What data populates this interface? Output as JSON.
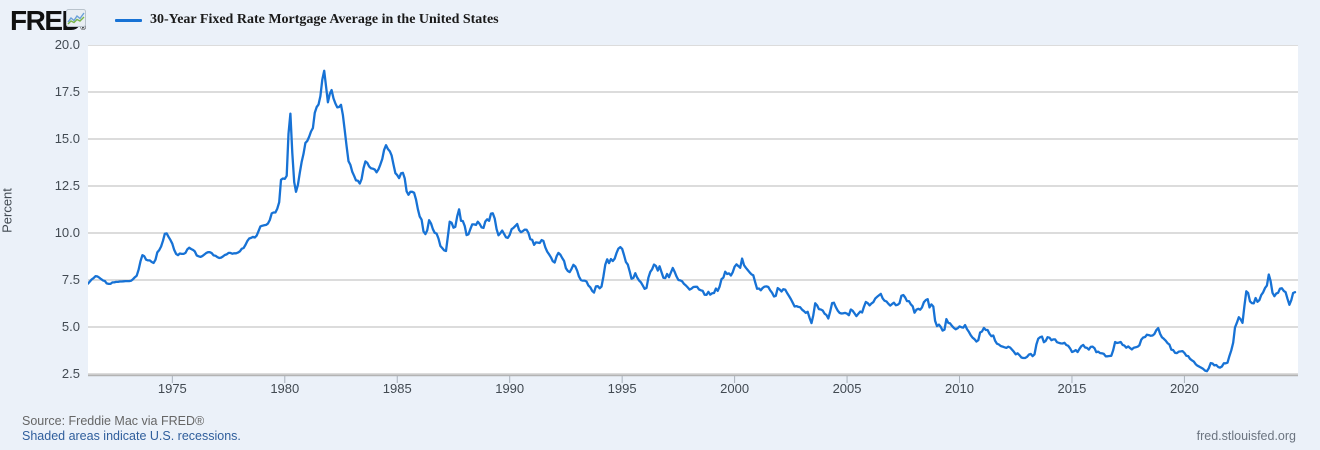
{
  "header": {
    "logo_text": "FRED",
    "logo_registered": "®"
  },
  "footer": {
    "source": "Source: Freddie Mac via FRED®",
    "recession_note": "Shaded areas indicate U.S. recessions.",
    "site": "fred.stlouisfed.org"
  },
  "colors": {
    "background": "#ebf1f9",
    "plot_background": "#ffffff",
    "gridline": "#c6c6c6",
    "axis_line": "#b3b3b3",
    "tick_mark": "#a9b2bc",
    "line": "#1772d5",
    "link_blue": "#2f5e9c",
    "text_gray": "#666666"
  },
  "chart_data": {
    "type": "line",
    "title": "30-Year Fixed Rate Mortgage Average in the United States",
    "grid": true,
    "legend_position": "top-left",
    "x_axis": {
      "min": 1971.25,
      "max": 2025.05,
      "tick_labels": [
        "1975",
        "1980",
        "1985",
        "1990",
        "1995",
        "2000",
        "2005",
        "2010",
        "2015",
        "2020"
      ]
    },
    "y_axis": {
      "title": "Percent",
      "grid_min": 2.5,
      "grid_max": 20.0,
      "tick_labels": [
        "2.5",
        "5.0",
        "7.5",
        "10.0",
        "12.5",
        "15.0",
        "17.5",
        "20.0"
      ]
    },
    "series": [
      {
        "unit": "percent",
        "frequency_depicted": "monthly",
        "x_start": 1971.25,
        "x_step": 0.0833333,
        "values": [
          7.31,
          7.42,
          7.53,
          7.6,
          7.7,
          7.69,
          7.63,
          7.55,
          7.48,
          7.44,
          7.32,
          7.29,
          7.29,
          7.37,
          7.37,
          7.4,
          7.4,
          7.42,
          7.42,
          7.43,
          7.44,
          7.44,
          7.44,
          7.46,
          7.54,
          7.65,
          7.73,
          8.05,
          8.5,
          8.82,
          8.77,
          8.58,
          8.54,
          8.54,
          8.46,
          8.41,
          8.58,
          8.97,
          9.09,
          9.28,
          9.59,
          9.96,
          9.98,
          9.79,
          9.62,
          9.43,
          9.1,
          8.89,
          8.82,
          8.91,
          8.89,
          8.89,
          8.94,
          9.13,
          9.22,
          9.15,
          9.1,
          9.02,
          8.81,
          8.76,
          8.73,
          8.77,
          8.85,
          8.93,
          8.98,
          8.98,
          8.93,
          8.81,
          8.79,
          8.72,
          8.67,
          8.69,
          8.75,
          8.83,
          8.86,
          8.94,
          8.94,
          8.9,
          8.92,
          8.92,
          8.96,
          9.02,
          9.16,
          9.2,
          9.36,
          9.57,
          9.71,
          9.74,
          9.79,
          9.76,
          9.86,
          10.11,
          10.35,
          10.39,
          10.41,
          10.43,
          10.5,
          10.69,
          11.04,
          11.09,
          11.09,
          11.3,
          11.64,
          12.83,
          12.9,
          12.88,
          13.04,
          15.28,
          16.35,
          14.26,
          12.71,
          12.19,
          12.56,
          13.2,
          13.79,
          14.21,
          14.79,
          14.9,
          15.13,
          15.4,
          15.58,
          16.4,
          16.7,
          16.83,
          17.28,
          18.16,
          18.63,
          17.82,
          16.95,
          17.4,
          17.6,
          17.16,
          16.89,
          16.68,
          16.7,
          16.82,
          16.27,
          15.43,
          14.61,
          13.82,
          13.62,
          13.25,
          13.04,
          12.8,
          12.78,
          12.63,
          12.87,
          13.44,
          13.81,
          13.73,
          13.54,
          13.44,
          13.42,
          13.37,
          13.23,
          13.39,
          13.65,
          13.94,
          14.42,
          14.67,
          14.47,
          14.35,
          14.13,
          13.64,
          13.18,
          13.08,
          12.92,
          13.17,
          13.2,
          12.91,
          12.22,
          12.03,
          12.19,
          12.19,
          12.14,
          11.78,
          11.26,
          10.88,
          10.71,
          10.08,
          9.94,
          10.14,
          10.68,
          10.51,
          10.2,
          10.01,
          9.97,
          9.7,
          9.31,
          9.2,
          9.08,
          9.04,
          9.83,
          10.6,
          10.54,
          10.28,
          10.33,
          10.89,
          11.26,
          10.65,
          10.64,
          10.38,
          9.89,
          9.93,
          10.2,
          10.46,
          10.46,
          10.43,
          10.6,
          10.48,
          10.3,
          10.27,
          10.61,
          10.73,
          10.65,
          11.03,
          11.05,
          10.77,
          10.2,
          9.88,
          9.99,
          10.13,
          9.95,
          9.77,
          9.74,
          9.9,
          10.2,
          10.27,
          10.37,
          10.48,
          10.16,
          10.04,
          10.1,
          10.18,
          10.17,
          10.01,
          9.67,
          9.64,
          9.37,
          9.5,
          9.49,
          9.47,
          9.62,
          9.58,
          9.24,
          9.01,
          8.86,
          8.71,
          8.5,
          8.43,
          8.76,
          8.94,
          8.85,
          8.67,
          8.51,
          8.13,
          7.98,
          7.92,
          8.09,
          8.31,
          8.22,
          7.99,
          7.68,
          7.5,
          7.47,
          7.47,
          7.42,
          7.21,
          7.11,
          6.92,
          6.83,
          7.16,
          7.17,
          7.06,
          7.15,
          7.68,
          8.32,
          8.6,
          8.4,
          8.61,
          8.51,
          8.64,
          8.93,
          9.17,
          9.25,
          9.15,
          8.83,
          8.46,
          8.32,
          7.96,
          7.57,
          7.61,
          7.86,
          7.64,
          7.48,
          7.38,
          7.2,
          7.03,
          7.08,
          7.62,
          7.93,
          8.07,
          8.32,
          8.25,
          8.0,
          8.23,
          7.92,
          7.62,
          7.6,
          7.82,
          7.65,
          7.9,
          8.14,
          7.94,
          7.69,
          7.5,
          7.48,
          7.43,
          7.29,
          7.21,
          7.1,
          6.99,
          7.04,
          7.13,
          7.14,
          7.14,
          7.0,
          6.95,
          6.92,
          6.72,
          6.71,
          6.87,
          6.72,
          6.79,
          6.81,
          7.04,
          6.92,
          7.15,
          7.55,
          7.63,
          7.94,
          7.82,
          7.85,
          7.74,
          7.91,
          8.21,
          8.33,
          8.24,
          8.15,
          8.64,
          8.29,
          8.15,
          8.03,
          7.91,
          7.8,
          7.75,
          7.38,
          7.03,
          7.05,
          6.95,
          7.08,
          7.15,
          7.16,
          7.13,
          6.95,
          6.82,
          6.62,
          6.66,
          7.07,
          7.0,
          6.89,
          7.01,
          6.99,
          6.81,
          6.65,
          6.49,
          6.29,
          6.09,
          6.11,
          6.07,
          6.05,
          5.92,
          5.84,
          5.75,
          5.81,
          5.48,
          5.21,
          5.63,
          6.26,
          6.15,
          5.95,
          5.93,
          5.88,
          5.71,
          5.64,
          5.45,
          5.83,
          6.27,
          6.29,
          6.06,
          5.87,
          5.75,
          5.72,
          5.73,
          5.75,
          5.71,
          5.63,
          5.93,
          5.86,
          5.72,
          5.58,
          5.7,
          5.82,
          5.77,
          6.07,
          6.33,
          6.27,
          6.15,
          6.25,
          6.32,
          6.51,
          6.6,
          6.68,
          6.76,
          6.52,
          6.4,
          6.36,
          6.24,
          6.14,
          6.22,
          6.29,
          6.16,
          6.18,
          6.26,
          6.66,
          6.7,
          6.57,
          6.38,
          6.38,
          6.21,
          6.1,
          5.76,
          5.92,
          5.97,
          5.92,
          6.04,
          6.32,
          6.43,
          6.48,
          6.04,
          6.2,
          6.09,
          5.33,
          5.05,
          5.13,
          5.0,
          4.81,
          4.86,
          5.42,
          5.22,
          5.19,
          5.06,
          4.95,
          4.88,
          4.93,
          5.03,
          4.99,
          4.97,
          5.1,
          4.89,
          4.74,
          4.56,
          4.43,
          4.35,
          4.23,
          4.3,
          4.71,
          4.76,
          4.95,
          4.84,
          4.84,
          4.64,
          4.51,
          4.55,
          4.27,
          4.11,
          4.07,
          3.99,
          3.96,
          3.92,
          3.89,
          3.95,
          3.91,
          3.8,
          3.68,
          3.55,
          3.6,
          3.5,
          3.38,
          3.35,
          3.35,
          3.41,
          3.53,
          3.57,
          3.45,
          3.54,
          4.07,
          4.37,
          4.46,
          4.49,
          4.19,
          4.26,
          4.46,
          4.43,
          4.3,
          4.34,
          4.34,
          4.19,
          4.16,
          4.13,
          4.12,
          4.16,
          4.04,
          4.0,
          3.86,
          3.67,
          3.71,
          3.77,
          3.67,
          3.84,
          3.98,
          4.05,
          3.91,
          3.89,
          3.8,
          3.94,
          3.96,
          3.87,
          3.66,
          3.69,
          3.61,
          3.6,
          3.57,
          3.44,
          3.44,
          3.46,
          3.47,
          3.77,
          4.2,
          4.15,
          4.17,
          4.2,
          4.05,
          4.01,
          3.9,
          3.97,
          3.88,
          3.81,
          3.9,
          3.92,
          3.95,
          4.03,
          4.33,
          4.44,
          4.47,
          4.59,
          4.57,
          4.53,
          4.55,
          4.63,
          4.83,
          4.94,
          4.64,
          4.46,
          4.37,
          4.27,
          4.14,
          4.07,
          3.8,
          3.77,
          3.62,
          3.61,
          3.69,
          3.7,
          3.72,
          3.62,
          3.47,
          3.45,
          3.31,
          3.23,
          3.16,
          3.02,
          2.94,
          2.89,
          2.83,
          2.77,
          2.68,
          2.65,
          2.81,
          3.08,
          3.06,
          2.96,
          2.98,
          2.87,
          2.84,
          2.9,
          3.07,
          3.07,
          3.1,
          3.45,
          3.76,
          4.17,
          4.98,
          5.23,
          5.52,
          5.41,
          5.22,
          6.11,
          6.9,
          6.81,
          6.36,
          6.27,
          6.26,
          6.54,
          6.34,
          6.43,
          6.71,
          6.84,
          7.07,
          7.2,
          7.79,
          7.44,
          6.82,
          6.64,
          6.78,
          6.82,
          7.04,
          7.06,
          6.92,
          6.85,
          6.5,
          6.18,
          6.43,
          6.81,
          6.85
        ]
      }
    ]
  }
}
